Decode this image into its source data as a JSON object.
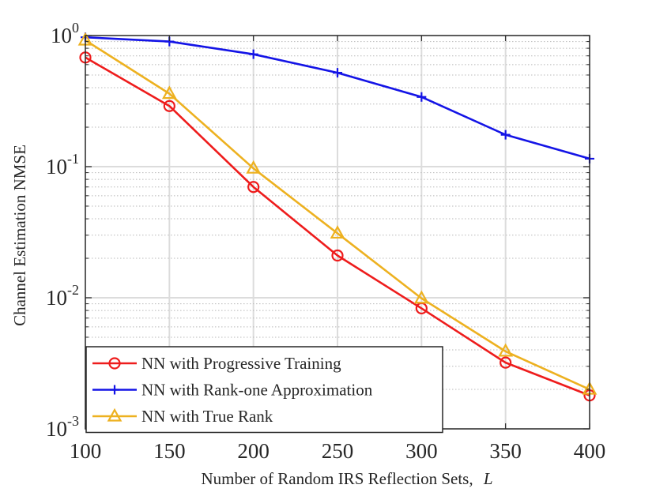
{
  "chart_data": {
    "type": "line",
    "title": "",
    "xlabel": "Number of Random IRS Reflection Sets,",
    "xlabel_symbol": "L",
    "ylabel": "Channel Estimation NMSE",
    "x": [
      100,
      150,
      200,
      250,
      300,
      350,
      400
    ],
    "xlim": [
      100,
      400
    ],
    "ylim": [
      0.001,
      1
    ],
    "yscale": "log",
    "grid": true,
    "x_tick_labels": [
      "100",
      "150",
      "200",
      "250",
      "300",
      "350",
      "400"
    ],
    "y_tick_labels": [
      {
        "base": "10",
        "exp": "-3"
      },
      {
        "base": "10",
        "exp": "-2"
      },
      {
        "base": "10",
        "exp": "-1"
      },
      {
        "base": "10",
        "exp": "0"
      }
    ],
    "legend_position": "bottom-left",
    "series": [
      {
        "name": "NN with Progressive Training",
        "color": "#ee1c1c",
        "marker": "circle",
        "values": [
          0.68,
          0.29,
          0.07,
          0.021,
          0.0083,
          0.0032,
          0.0018
        ]
      },
      {
        "name": "NN with Rank-one Approximation",
        "color": "#1414e6",
        "marker": "plus",
        "values": [
          0.97,
          0.9,
          0.72,
          0.52,
          0.34,
          0.175,
          0.115
        ]
      },
      {
        "name": "NN with True Rank",
        "color": "#edb120",
        "marker": "triangle",
        "values": [
          0.92,
          0.36,
          0.097,
          0.031,
          0.0099,
          0.0039,
          0.002
        ]
      }
    ]
  }
}
